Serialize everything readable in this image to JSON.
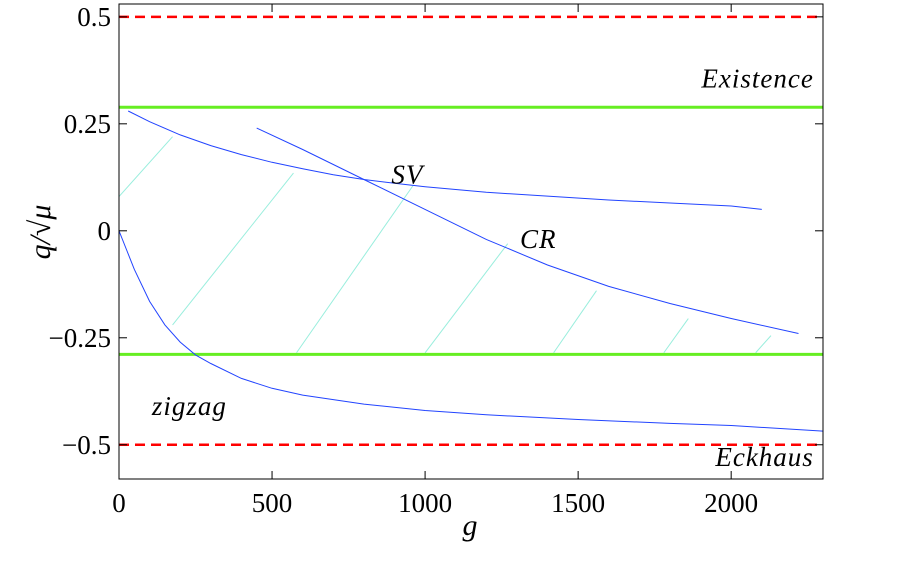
{
  "chart_data": {
    "type": "line",
    "title": "",
    "xlabel": "g",
    "ylabel": "q/√μ",
    "xlim": [
      0,
      2300
    ],
    "ylim": [
      -0.58,
      0.53
    ],
    "grid": false,
    "x_ticks": [
      {
        "value": 0,
        "label": "0"
      },
      {
        "value": 500,
        "label": "500"
      },
      {
        "value": 1000,
        "label": "1000"
      },
      {
        "value": 1500,
        "label": "1500"
      },
      {
        "value": 2000,
        "label": "2000"
      }
    ],
    "y_ticks": [
      {
        "value": 0.5,
        "label": "0.5"
      },
      {
        "value": 0.25,
        "label": "0.25"
      },
      {
        "value": 0,
        "label": "0"
      },
      {
        "value": -0.25,
        "label": "−0.25"
      },
      {
        "value": -0.5,
        "label": "−0.5"
      }
    ],
    "hlines": [
      {
        "y": 0.5,
        "color": "#ff0000",
        "style": "dashed"
      },
      {
        "y": -0.5,
        "color": "#ff0000",
        "style": "dashed"
      },
      {
        "y": 0.2887,
        "color": "#66ee22",
        "style": "solid"
      },
      {
        "y": -0.2887,
        "color": "#66ee22",
        "style": "solid"
      }
    ],
    "series": [
      {
        "color": "#2244ff",
        "x": [
          30,
          100,
          200,
          300,
          400,
          500,
          600,
          700,
          800,
          900,
          1000,
          1200,
          1400,
          1600,
          1800,
          2000,
          2100
        ],
        "y": [
          0.28,
          0.255,
          0.224,
          0.199,
          0.178,
          0.16,
          0.145,
          0.131,
          0.12,
          0.111,
          0.103,
          0.09,
          0.081,
          0.072,
          0.065,
          0.058,
          0.05
        ]
      },
      {
        "color": "#2244ff",
        "x": [
          450,
          600,
          800,
          1000,
          1200,
          1400,
          1600,
          1800,
          2000,
          2220
        ],
        "y": [
          0.24,
          0.19,
          0.12,
          0.05,
          -0.02,
          -0.08,
          -0.13,
          -0.17,
          -0.205,
          -0.24
        ]
      },
      {
        "color": "#2244ff",
        "x": [
          0,
          50,
          100,
          150,
          200,
          250,
          300,
          400,
          500,
          600,
          800,
          1000,
          1200,
          1500,
          1800,
          2000,
          2300
        ],
        "y": [
          0,
          -0.09,
          -0.165,
          -0.22,
          -0.26,
          -0.29,
          -0.31,
          -0.345,
          -0.368,
          -0.384,
          -0.405,
          -0.42,
          -0.43,
          -0.441,
          -0.45,
          -0.455,
          -0.468
        ]
      }
    ],
    "hatch_color": "#99eedd",
    "hatch_lines": [
      [
        [
          0,
          0.08
        ],
        [
          175,
          0.22
        ]
      ],
      [
        [
          175,
          -0.22
        ],
        [
          570,
          0.135
        ]
      ],
      [
        [
          580,
          -0.285
        ],
        [
          960,
          0.105
        ]
      ],
      [
        [
          1000,
          -0.285
        ],
        [
          1270,
          -0.03
        ]
      ],
      [
        [
          1420,
          -0.285
        ],
        [
          1560,
          -0.14
        ]
      ],
      [
        [
          1780,
          -0.285
        ],
        [
          1860,
          -0.205
        ]
      ],
      [
        [
          2080,
          -0.285
        ],
        [
          2130,
          -0.245
        ]
      ]
    ],
    "annotations": [
      {
        "text": "Existence",
        "x": 2270,
        "y": 0.335,
        "anchor": "end"
      },
      {
        "text": "SV",
        "x": 890,
        "y": 0.11,
        "anchor": "start"
      },
      {
        "text": "CR",
        "x": 1310,
        "y": -0.04,
        "anchor": "start"
      },
      {
        "text": "zigzag",
        "x": 230,
        "y": -0.43,
        "anchor": "middle"
      },
      {
        "text": "Eckhaus",
        "x": 2270,
        "y": -0.55,
        "anchor": "end"
      }
    ]
  }
}
